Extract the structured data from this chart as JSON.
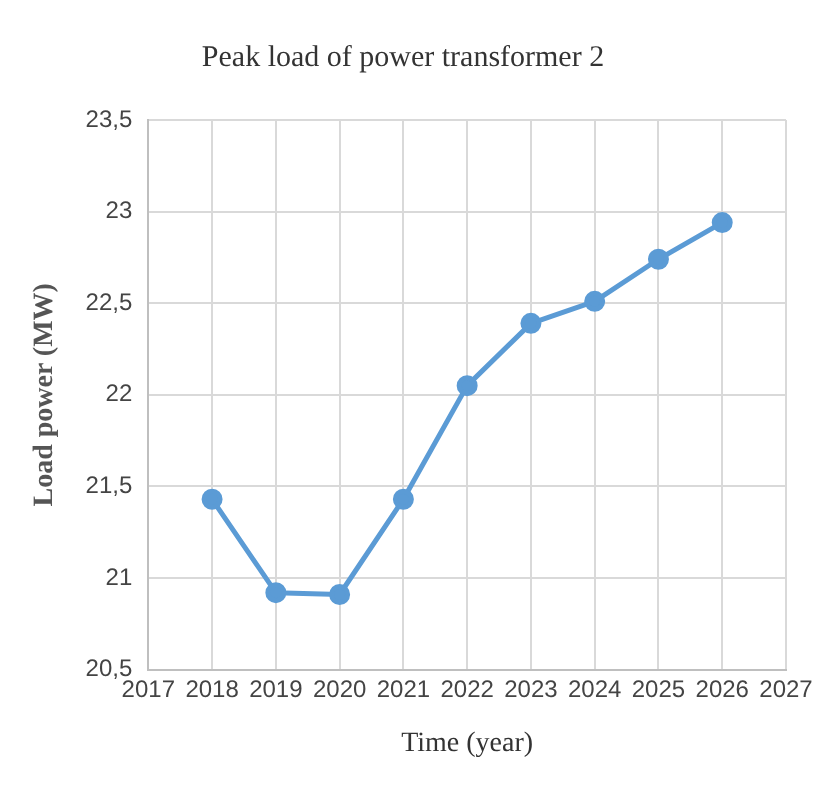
{
  "chart_data": {
    "type": "line",
    "title": "Peak load of power transformer 2",
    "xlabel": "Time (year)",
    "ylabel": "Load power (MW)",
    "x": [
      2018,
      2019,
      2020,
      2021,
      2022,
      2023,
      2024,
      2025,
      2026
    ],
    "series": [
      {
        "color": "#5b9bd5",
        "values": [
          21.43,
          20.92,
          20.91,
          21.43,
          22.05,
          22.39,
          22.51,
          22.74,
          22.94
        ]
      }
    ],
    "xlim": [
      2017,
      2027
    ],
    "xticks": [
      2017,
      2018,
      2019,
      2020,
      2021,
      2022,
      2023,
      2024,
      2025,
      2026,
      2027
    ],
    "ylim": [
      20.5,
      23.5
    ],
    "yticks": [
      {
        "value": 20.5,
        "label": "20,5"
      },
      21,
      {
        "value": 21.5,
        "label": "21,5"
      },
      22,
      {
        "value": 22.5,
        "label": "22,5"
      },
      23,
      {
        "value": 23.5,
        "label": "23,5"
      }
    ],
    "grid": true,
    "legend": false,
    "marker": "circle",
    "line_style": "solid"
  }
}
